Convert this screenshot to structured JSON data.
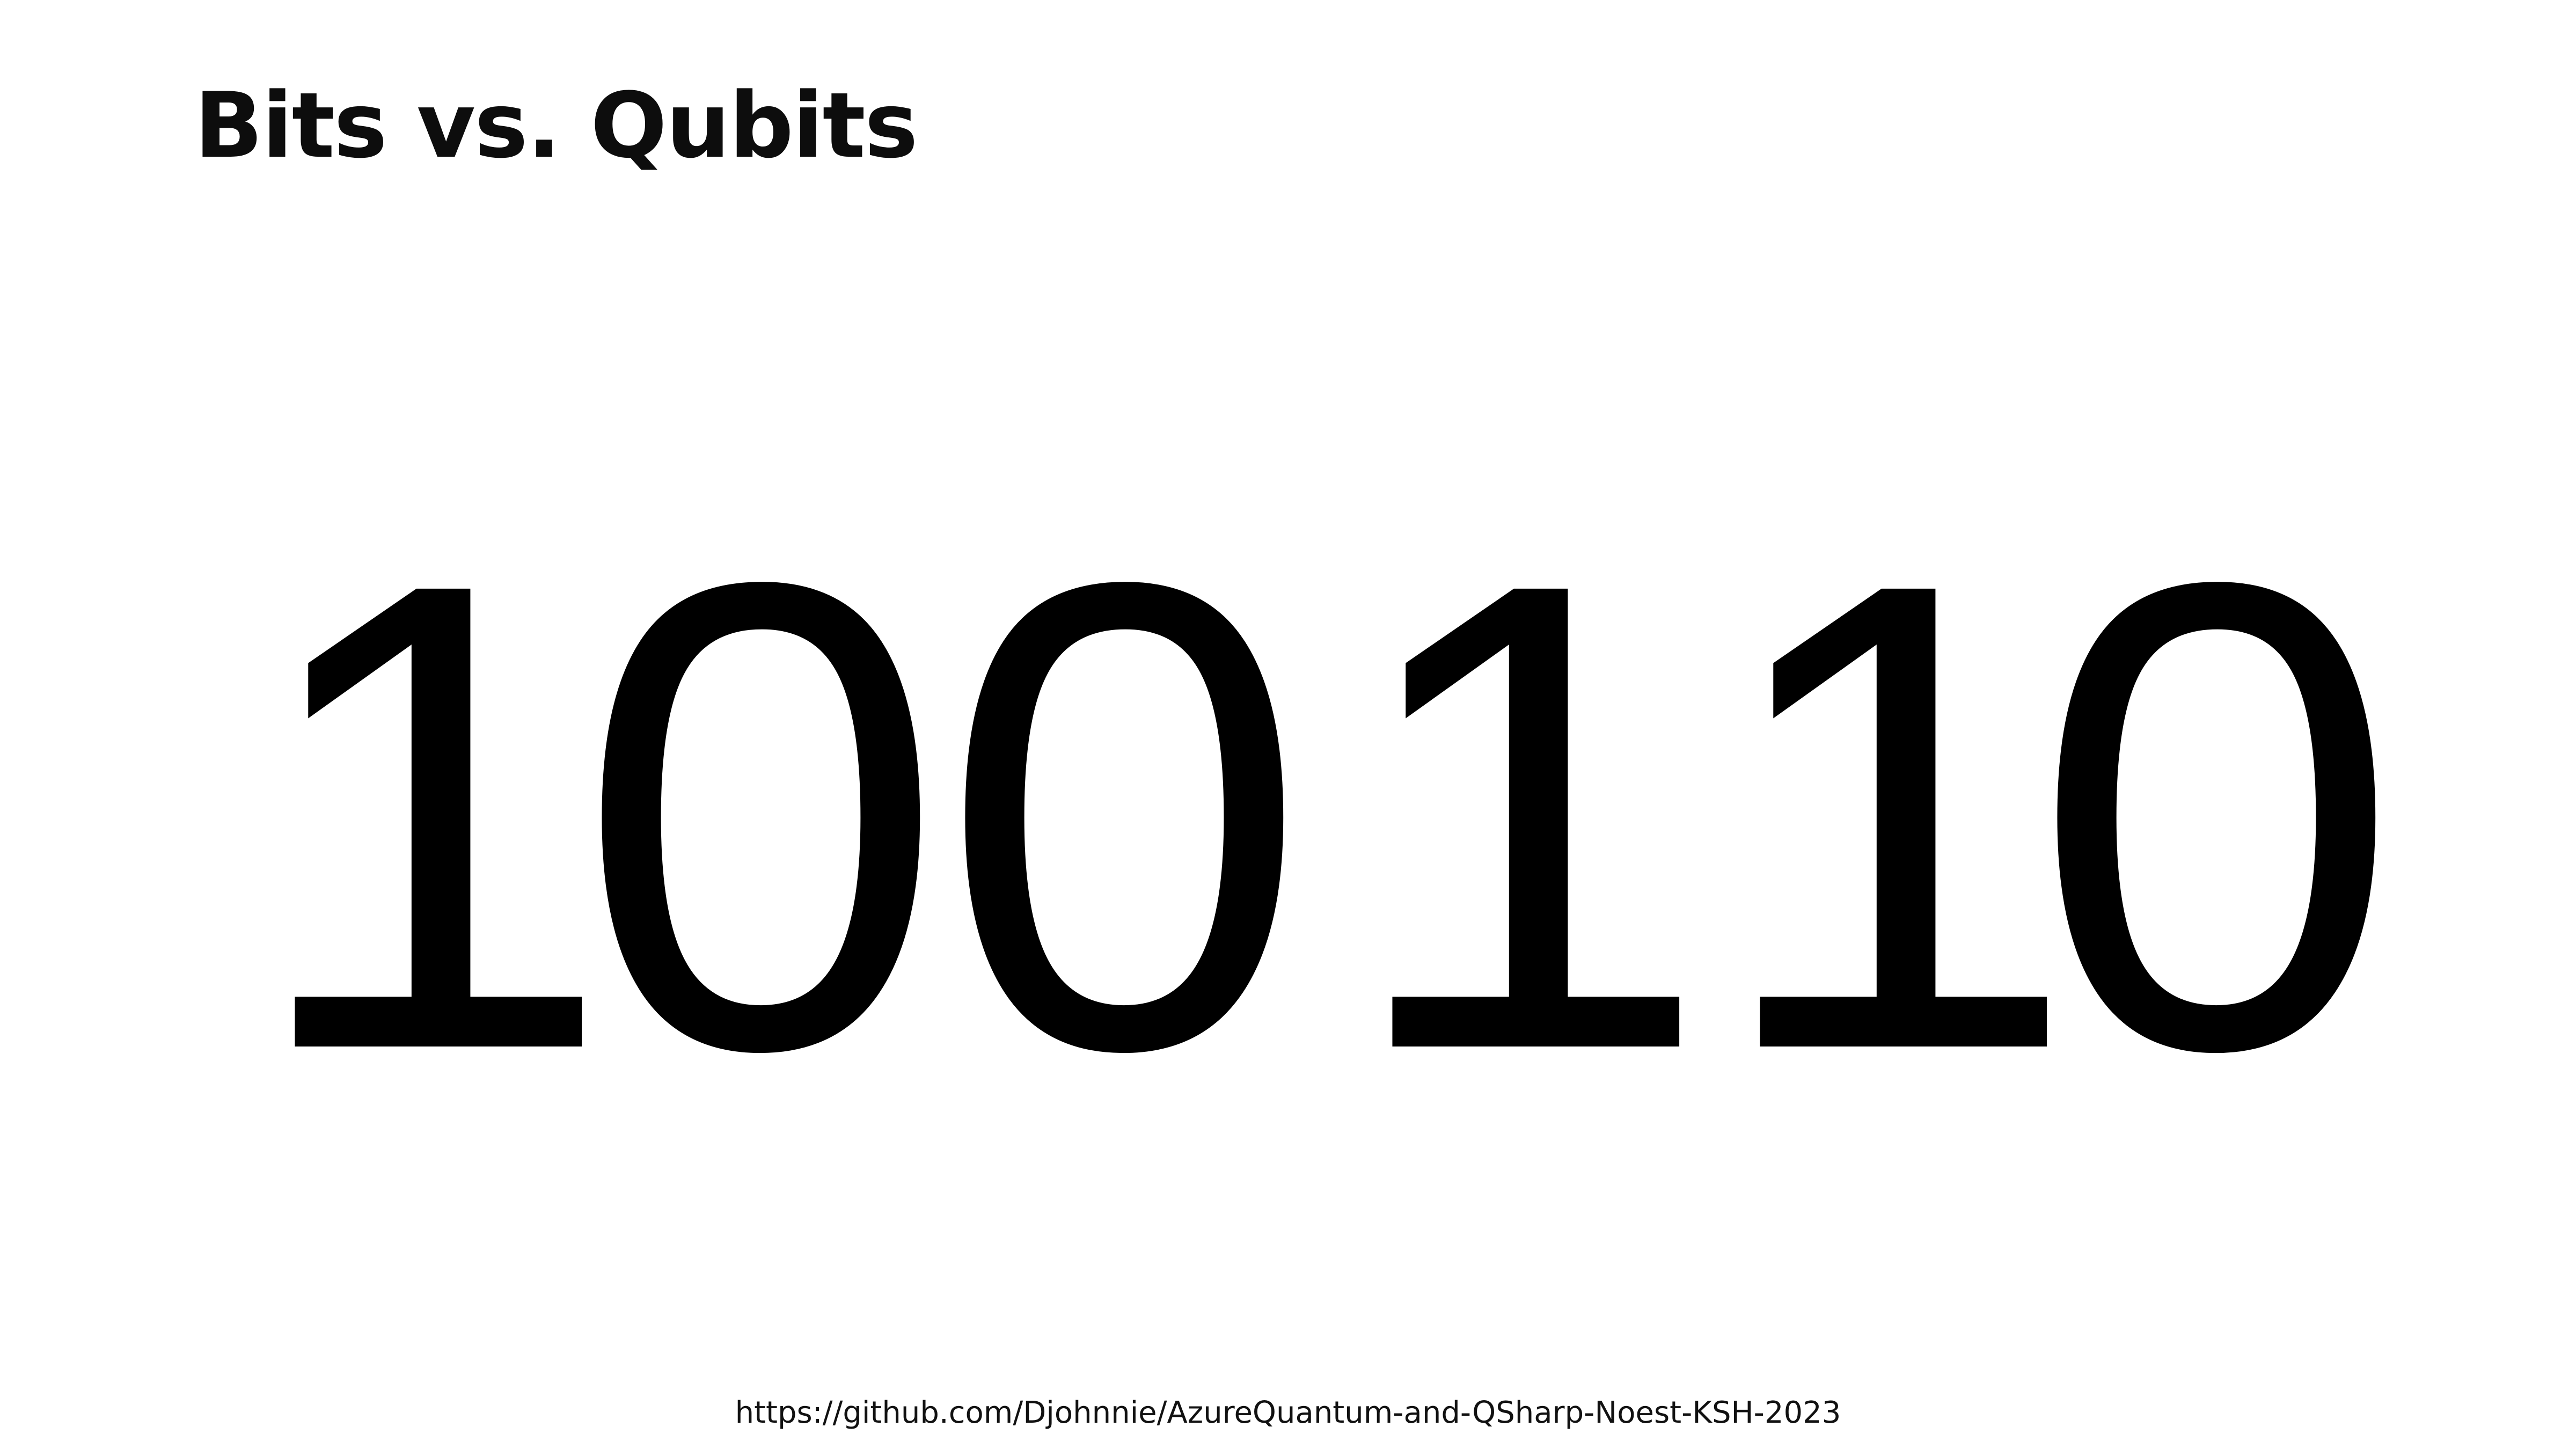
{
  "slide": {
    "title": "Bits vs. Qubits",
    "bits": [
      "1",
      "0",
      "0",
      "1",
      "1",
      "0"
    ],
    "footer_link": "https://github.com/Djohnnie/AzureQuantum-and-QSharp-Noest-KSH-2023"
  }
}
